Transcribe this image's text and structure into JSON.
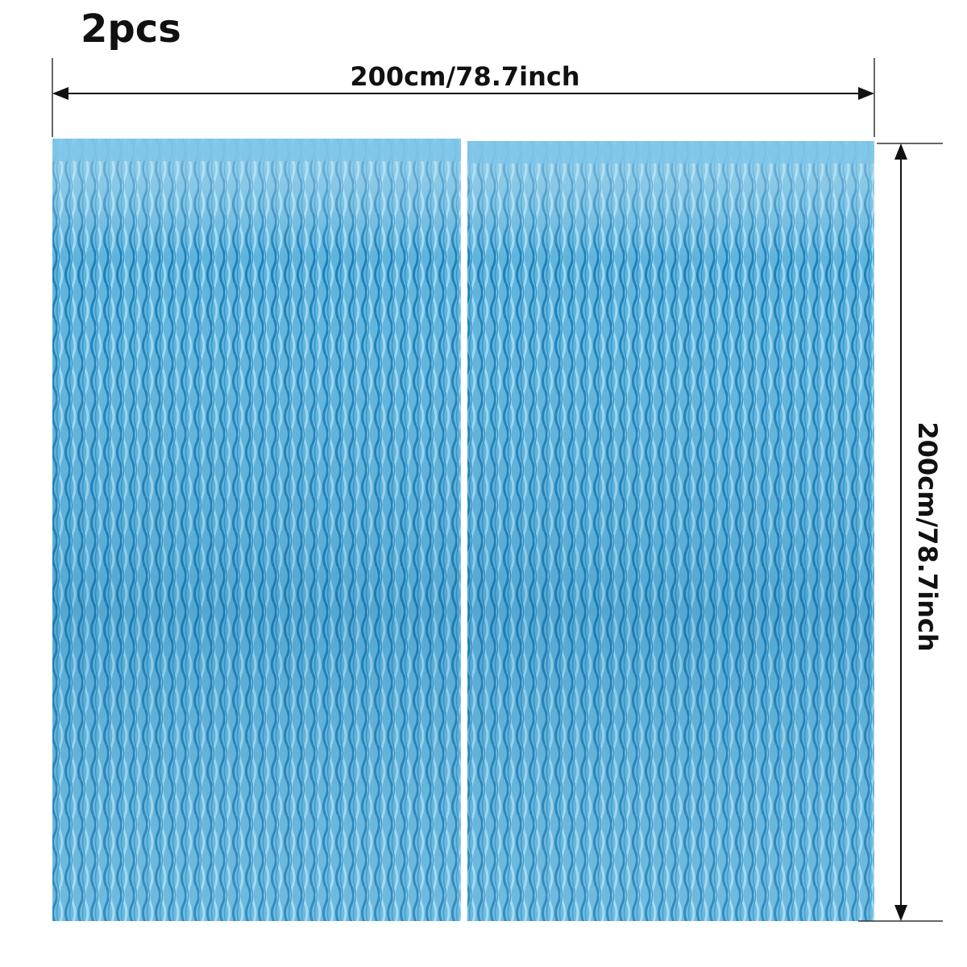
{
  "title": "2pcs",
  "width_label": "200cm/78.7inch",
  "height_label": "200cm/78.7inch"
}
